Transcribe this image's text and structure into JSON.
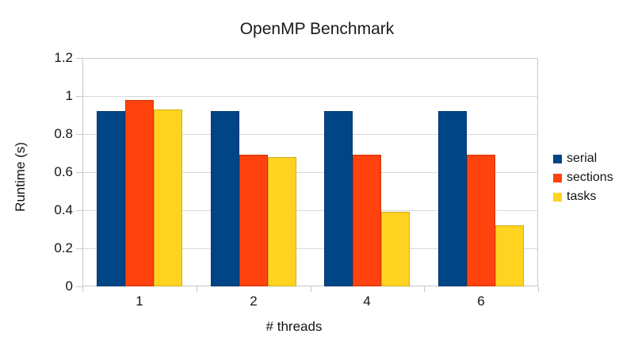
{
  "title": "OpenMP Benchmark",
  "chart_data": {
    "type": "bar",
    "title": "OpenMP Benchmark",
    "categories": [
      "1",
      "2",
      "4",
      "6"
    ],
    "series": [
      {
        "name": "serial",
        "color": "#004586",
        "values": [
          0.92,
          0.92,
          0.92,
          0.92
        ]
      },
      {
        "name": "sections",
        "color": "#FF420E",
        "values": [
          0.98,
          0.69,
          0.69,
          0.69
        ]
      },
      {
        "name": "tasks",
        "color": "#FFD320",
        "values": [
          0.93,
          0.68,
          0.39,
          0.32
        ]
      }
    ],
    "xlabel": "# threads",
    "ylabel": "Runtime (s)",
    "ylim": [
      0,
      1.2
    ],
    "ytick_step": 0.2,
    "ytick_labels": [
      "0",
      "0.2",
      "0.4",
      "0.6",
      "0.8",
      "1",
      "1.2"
    ],
    "grid": true,
    "legend_position": "right"
  },
  "colors": {
    "grid": "#d9d9d9",
    "axis": "#c8c8c8",
    "text": "#141414",
    "background": "#ffffff"
  }
}
